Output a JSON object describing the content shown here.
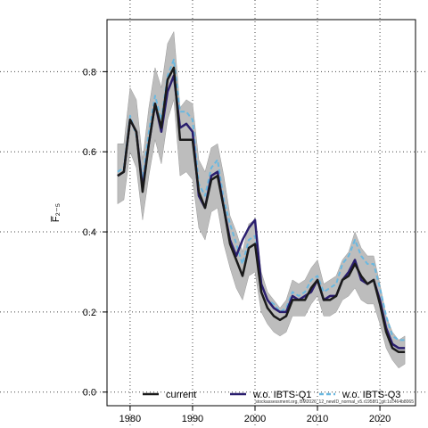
{
  "chart_data": {
    "type": "line",
    "ylabel": "F̅₂₋₅",
    "xlim": [
      1976.3,
      2025.7
    ],
    "ylim": [
      -0.034,
      0.93
    ],
    "x_ticks": [
      1980,
      1990,
      2000,
      2010,
      2020
    ],
    "x_tick_labels": [
      "1980",
      "1990",
      "2000",
      "2010",
      "2020"
    ],
    "y_ticks": [
      0.0,
      0.2,
      0.4,
      0.6,
      0.8
    ],
    "y_tick_labels": [
      "0.0",
      "0.2",
      "0.4",
      "0.6",
      "0.8"
    ],
    "grid": true,
    "legend_position": "bottom",
    "x": [
      1978,
      1979,
      1980,
      1981,
      1982,
      1983,
      1984,
      1985,
      1986,
      1987,
      1988,
      1989,
      1990,
      1991,
      1992,
      1993,
      1994,
      1995,
      1996,
      1997,
      1998,
      1999,
      2000,
      2001,
      2002,
      2003,
      2004,
      2005,
      2006,
      2007,
      2008,
      2009,
      2010,
      2011,
      2012,
      2013,
      2014,
      2015,
      2016,
      2017,
      2018,
      2019,
      2020,
      2021,
      2022,
      2023,
      2024
    ],
    "band": {
      "lower": [
        0.47,
        0.48,
        0.6,
        0.56,
        0.43,
        0.54,
        0.63,
        0.57,
        0.68,
        0.73,
        0.54,
        0.55,
        0.53,
        0.41,
        0.38,
        0.45,
        0.46,
        0.37,
        0.31,
        0.26,
        0.23,
        0.29,
        0.3,
        0.2,
        0.17,
        0.15,
        0.14,
        0.15,
        0.19,
        0.19,
        0.19,
        0.22,
        0.24,
        0.19,
        0.19,
        0.2,
        0.23,
        0.24,
        0.26,
        0.23,
        0.22,
        0.22,
        0.17,
        0.11,
        0.08,
        0.06,
        0.07
      ],
      "upper": [
        0.62,
        0.62,
        0.76,
        0.73,
        0.58,
        0.71,
        0.81,
        0.76,
        0.87,
        0.9,
        0.71,
        0.73,
        0.72,
        0.58,
        0.55,
        0.61,
        0.62,
        0.54,
        0.44,
        0.4,
        0.35,
        0.42,
        0.43,
        0.3,
        0.25,
        0.23,
        0.21,
        0.23,
        0.28,
        0.27,
        0.28,
        0.31,
        0.33,
        0.27,
        0.28,
        0.29,
        0.33,
        0.35,
        0.4,
        0.36,
        0.34,
        0.34,
        0.27,
        0.19,
        0.15,
        0.13,
        0.14
      ]
    },
    "series": [
      {
        "name": "current",
        "color": "#1a1a1a",
        "dash": "",
        "values": [
          0.54,
          0.55,
          0.68,
          0.65,
          0.5,
          0.62,
          0.72,
          0.66,
          0.78,
          0.81,
          0.63,
          0.63,
          0.63,
          0.5,
          0.46,
          0.53,
          0.54,
          0.46,
          0.37,
          0.33,
          0.29,
          0.36,
          0.37,
          0.25,
          0.21,
          0.19,
          0.18,
          0.19,
          0.23,
          0.23,
          0.23,
          0.26,
          0.28,
          0.23,
          0.23,
          0.24,
          0.28,
          0.29,
          0.32,
          0.29,
          0.27,
          0.28,
          0.22,
          0.15,
          0.11,
          0.1,
          0.1
        ]
      },
      {
        "name": "w.o. IBTS-Q1",
        "color": "#2a1e6e",
        "dash": "",
        "values": [
          0.54,
          0.55,
          0.68,
          0.65,
          0.51,
          0.62,
          0.72,
          0.65,
          0.75,
          0.79,
          0.66,
          0.67,
          0.65,
          0.49,
          0.46,
          0.54,
          0.55,
          0.46,
          0.38,
          0.34,
          0.38,
          0.41,
          0.43,
          0.27,
          0.23,
          0.21,
          0.2,
          0.2,
          0.24,
          0.23,
          0.24,
          0.25,
          0.28,
          0.23,
          0.24,
          0.24,
          0.28,
          0.3,
          0.33,
          0.28,
          0.27,
          0.28,
          0.23,
          0.16,
          0.12,
          0.11,
          0.11
        ]
      },
      {
        "name": "w.o. IBTS-Q3",
        "color": "#6ab8e0",
        "dash": "5,3",
        "values": [
          0.55,
          0.56,
          0.69,
          0.64,
          0.53,
          0.65,
          0.74,
          0.68,
          0.79,
          0.83,
          0.7,
          0.7,
          0.68,
          0.52,
          0.49,
          0.56,
          0.58,
          0.48,
          0.42,
          0.37,
          0.32,
          0.38,
          0.39,
          0.27,
          0.23,
          0.22,
          0.2,
          0.21,
          0.25,
          0.24,
          0.25,
          0.28,
          0.29,
          0.25,
          0.26,
          0.27,
          0.32,
          0.34,
          0.38,
          0.34,
          0.32,
          0.32,
          0.26,
          0.19,
          0.14,
          0.13,
          0.13
        ]
      }
    ]
  },
  "footnote": "stockassessment.org, BM2026_12_newID_normal_v5.r1958f1..git:1cc464b8065",
  "band_color": "#bdbdbd"
}
